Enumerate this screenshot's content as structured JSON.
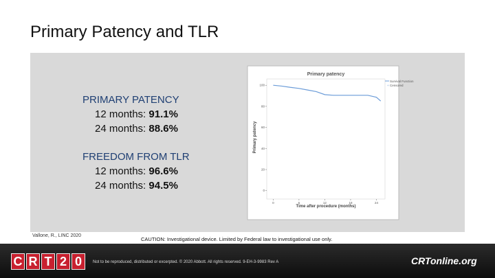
{
  "title": "Primary Patency and TLR",
  "stats": [
    {
      "heading": "PRIMARY PATENCY",
      "rows": [
        {
          "label": "12 months:",
          "value": "91.1%"
        },
        {
          "label": "24 months:",
          "value": "88.6%"
        }
      ]
    },
    {
      "heading": "FREEDOM FROM TLR",
      "rows": [
        {
          "label": "12 months:",
          "value": "96.6%"
        },
        {
          "label": "24 months:",
          "value": "94.5%"
        }
      ]
    }
  ],
  "citation": "Vallone, R., LINC 2020",
  "caution": "CAUTION: Investigational device.  Limited by Federal law to investigational use only.",
  "footer": {
    "logo": [
      "C",
      "R",
      "T",
      "2",
      "0"
    ],
    "disclaimer": "Not to be reproduced, distributed or excerpted.   © 2020 Abbott.  All rights reserved.  9-EH-3-9983 Rev A",
    "site": "CRTonline.org"
  },
  "chart_data": {
    "type": "line",
    "title": "Primary patency",
    "xlabel": "Time after procedure (months)",
    "ylabel": "Primary patency",
    "x": [
      0,
      2,
      4,
      6,
      8,
      10,
      12,
      14,
      16,
      18,
      20,
      22,
      24,
      25
    ],
    "series": [
      {
        "name": "Survival Function",
        "color": "#6a9bd8",
        "values": [
          100,
          99.2,
          98,
          97,
          95.5,
          94,
          91.1,
          90.5,
          90.5,
          90.5,
          90.5,
          90.5,
          88.6,
          85
        ]
      }
    ],
    "censored_label": "Censored",
    "xlim": [
      -1.5,
      26
    ],
    "xticks": [
      0,
      6,
      12,
      18,
      24
    ],
    "ylim": [
      -8,
      106
    ],
    "yticks": [
      0,
      20,
      40,
      60,
      80,
      100
    ]
  }
}
